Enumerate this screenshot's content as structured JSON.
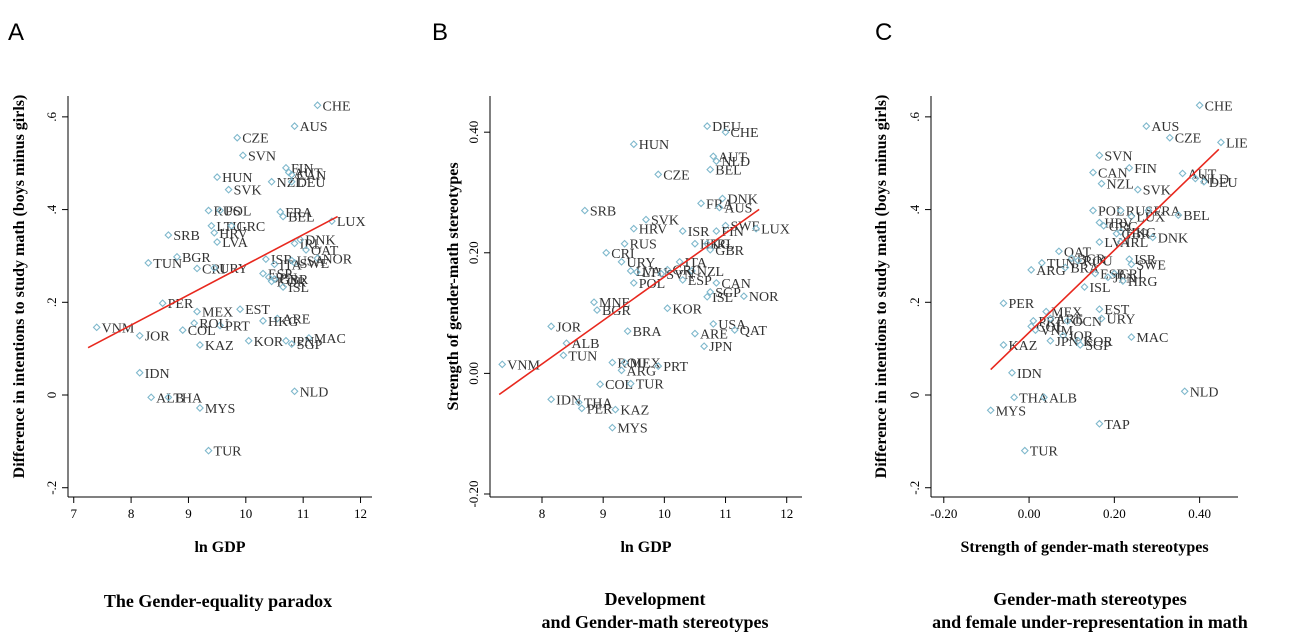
{
  "colors": {
    "marker": "#7fb8cc",
    "fit_line": "#e8281e",
    "axis": "#000000",
    "label": "#333333"
  },
  "chart_data": [
    {
      "type": "scatter",
      "panel": "A",
      "caption_lines": [
        "The Gender-equality paradox"
      ],
      "xlabel": "ln GDP",
      "ylabel": "Difference in intentions to study math (boys minus girls)",
      "xlim": [
        6.9,
        12.2
      ],
      "ylim": [
        -0.22,
        0.645
      ],
      "xticks": [
        7,
        8,
        9,
        10,
        11,
        12
      ],
      "xtick_labels": [
        "7",
        "8",
        "9",
        "10",
        "11",
        "12"
      ],
      "yticks": [
        -0.2,
        0,
        0.2,
        0.4,
        0.6
      ],
      "ytick_labels": [
        "-.2",
        "0",
        ".2",
        ".4",
        ".6"
      ],
      "fit_line": [
        [
          7.25,
          0.102
        ],
        [
          11.6,
          0.385
        ]
      ],
      "points": [
        {
          "label": "CHE",
          "x": 11.25,
          "y": 0.625
        },
        {
          "label": "AUS",
          "x": 10.85,
          "y": 0.58
        },
        {
          "label": "CZE",
          "x": 9.85,
          "y": 0.555
        },
        {
          "label": "SVN",
          "x": 9.95,
          "y": 0.517
        },
        {
          "label": "FIN",
          "x": 10.7,
          "y": 0.49
        },
        {
          "label": "AUT",
          "x": 10.75,
          "y": 0.48
        },
        {
          "label": "CAN",
          "x": 10.8,
          "y": 0.475
        },
        {
          "label": "NZL",
          "x": 10.45,
          "y": 0.46
        },
        {
          "label": "DEU",
          "x": 10.8,
          "y": 0.46
        },
        {
          "label": "HUN",
          "x": 9.5,
          "y": 0.47
        },
        {
          "label": "SVK",
          "x": 9.7,
          "y": 0.443
        },
        {
          "label": "FRA",
          "x": 10.6,
          "y": 0.395
        },
        {
          "label": "BEL",
          "x": 10.65,
          "y": 0.385
        },
        {
          "label": "LUX",
          "x": 11.5,
          "y": 0.375
        },
        {
          "label": "RUS",
          "x": 9.35,
          "y": 0.398
        },
        {
          "label": "POL",
          "x": 9.55,
          "y": 0.398
        },
        {
          "label": "LTU",
          "x": 9.4,
          "y": 0.365
        },
        {
          "label": "GRC",
          "x": 9.75,
          "y": 0.365
        },
        {
          "label": "HRV",
          "x": 9.45,
          "y": 0.35
        },
        {
          "label": "SRB",
          "x": 8.65,
          "y": 0.345
        },
        {
          "label": "LVA",
          "x": 9.5,
          "y": 0.33
        },
        {
          "label": "IRL",
          "x": 10.85,
          "y": 0.327
        },
        {
          "label": "DNK",
          "x": 10.95,
          "y": 0.335
        },
        {
          "label": "QAT",
          "x": 11.05,
          "y": 0.313
        },
        {
          "label": "NOR",
          "x": 11.25,
          "y": 0.295
        },
        {
          "label": "ISR",
          "x": 10.35,
          "y": 0.293
        },
        {
          "label": "USA",
          "x": 10.8,
          "y": 0.29
        },
        {
          "label": "SWE",
          "x": 10.85,
          "y": 0.285
        },
        {
          "label": "TUN",
          "x": 8.3,
          "y": 0.285
        },
        {
          "label": "BGR",
          "x": 8.8,
          "y": 0.298
        },
        {
          "label": "CRI",
          "x": 9.15,
          "y": 0.273
        },
        {
          "label": "URY",
          "x": 9.45,
          "y": 0.274
        },
        {
          "label": "ITA",
          "x": 10.5,
          "y": 0.282
        },
        {
          "label": "ESP",
          "x": 10.3,
          "y": 0.262
        },
        {
          "label": "JPN",
          "x": 10.4,
          "y": 0.254
        },
        {
          "label": "GBR",
          "x": 10.5,
          "y": 0.25
        },
        {
          "label": "KOR",
          "x": 10.45,
          "y": 0.245
        },
        {
          "label": "ISL",
          "x": 10.65,
          "y": 0.233
        },
        {
          "label": "PER",
          "x": 8.55,
          "y": 0.198
        },
        {
          "label": "MEX",
          "x": 9.15,
          "y": 0.18
        },
        {
          "label": "EST",
          "x": 9.9,
          "y": 0.185
        },
        {
          "label": "ARE",
          "x": 10.55,
          "y": 0.165
        },
        {
          "label": "HKG",
          "x": 10.3,
          "y": 0.16
        },
        {
          "label": "PRT",
          "x": 9.55,
          "y": 0.15
        },
        {
          "label": "ROU",
          "x": 9.1,
          "y": 0.155
        },
        {
          "label": "COL",
          "x": 8.9,
          "y": 0.14
        },
        {
          "label": "VNM",
          "x": 7.4,
          "y": 0.146
        },
        {
          "label": "JOR",
          "x": 8.15,
          "y": 0.128
        },
        {
          "label": "KAZ",
          "x": 9.2,
          "y": 0.108
        },
        {
          "label": "MAC",
          "x": 11.1,
          "y": 0.123
        },
        {
          "label": "JPN",
          "x": 10.7,
          "y": 0.117
        },
        {
          "label": "KOR",
          "x": 10.05,
          "y": 0.117
        },
        {
          "label": "SGP",
          "x": 10.8,
          "y": 0.11
        },
        {
          "label": "IDN",
          "x": 8.15,
          "y": 0.048
        },
        {
          "label": "NLD",
          "x": 10.85,
          "y": 0.008
        },
        {
          "label": "ALB",
          "x": 8.35,
          "y": -0.005
        },
        {
          "label": "THA",
          "x": 8.65,
          "y": -0.005
        },
        {
          "label": "MYS",
          "x": 9.2,
          "y": -0.028
        },
        {
          "label": "TUR",
          "x": 9.35,
          "y": -0.12
        }
      ]
    },
    {
      "type": "scatter",
      "panel": "B",
      "caption_lines": [
        "Development",
        "and Gender-math stereotypes"
      ],
      "xlabel": "ln GDP",
      "ylabel": "Strength of gender-math stereotypes",
      "xlim": [
        7.15,
        12.25
      ],
      "ylim": [
        -0.205,
        0.46
      ],
      "xticks": [
        8,
        9,
        10,
        11,
        12
      ],
      "xtick_labels": [
        "8",
        "9",
        "10",
        "11",
        "12"
      ],
      "yticks": [
        -0.2,
        0,
        0.2,
        0.4
      ],
      "ytick_labels": [
        "-0.20",
        "0.00",
        "0.20",
        "0.40"
      ],
      "fit_line": [
        [
          7.3,
          -0.035
        ],
        [
          11.55,
          0.272
        ]
      ],
      "points": [
        {
          "label": "DEU",
          "x": 10.7,
          "y": 0.41
        },
        {
          "label": "CHE",
          "x": 11.0,
          "y": 0.4
        },
        {
          "label": "HUN",
          "x": 9.5,
          "y": 0.38
        },
        {
          "label": "AUT",
          "x": 10.8,
          "y": 0.36
        },
        {
          "label": "NLD",
          "x": 10.85,
          "y": 0.352
        },
        {
          "label": "BEL",
          "x": 10.75,
          "y": 0.338
        },
        {
          "label": "CZE",
          "x": 9.9,
          "y": 0.33
        },
        {
          "label": "DNK",
          "x": 10.95,
          "y": 0.29
        },
        {
          "label": "FRA",
          "x": 10.6,
          "y": 0.282
        },
        {
          "label": "AUS",
          "x": 10.9,
          "y": 0.275
        },
        {
          "label": "SRB",
          "x": 8.7,
          "y": 0.27
        },
        {
          "label": "SVK",
          "x": 9.7,
          "y": 0.255
        },
        {
          "label": "SWE",
          "x": 11.0,
          "y": 0.245
        },
        {
          "label": "LUX",
          "x": 11.5,
          "y": 0.24
        },
        {
          "label": "FIN",
          "x": 10.85,
          "y": 0.236
        },
        {
          "label": "HRV",
          "x": 9.5,
          "y": 0.24
        },
        {
          "label": "ISR",
          "x": 10.3,
          "y": 0.236
        },
        {
          "label": "HKG",
          "x": 10.5,
          "y": 0.215
        },
        {
          "label": "IRL",
          "x": 10.7,
          "y": 0.215
        },
        {
          "label": "GBR",
          "x": 10.75,
          "y": 0.205
        },
        {
          "label": "RUS",
          "x": 9.35,
          "y": 0.215
        },
        {
          "label": "CRI",
          "x": 9.05,
          "y": 0.2
        },
        {
          "label": "URY",
          "x": 9.3,
          "y": 0.185
        },
        {
          "label": "ITA",
          "x": 10.25,
          "y": 0.185
        },
        {
          "label": "NZL",
          "x": 10.45,
          "y": 0.17
        },
        {
          "label": "GRC",
          "x": 10.05,
          "y": 0.172
        },
        {
          "label": "LVA",
          "x": 9.45,
          "y": 0.17
        },
        {
          "label": "LTU",
          "x": 9.55,
          "y": 0.168
        },
        {
          "label": "SVN",
          "x": 9.95,
          "y": 0.165
        },
        {
          "label": "POL",
          "x": 9.5,
          "y": 0.15
        },
        {
          "label": "ESP",
          "x": 10.3,
          "y": 0.155
        },
        {
          "label": "CAN",
          "x": 10.85,
          "y": 0.15
        },
        {
          "label": "SGP",
          "x": 10.75,
          "y": 0.135
        },
        {
          "label": "ISL",
          "x": 10.7,
          "y": 0.127
        },
        {
          "label": "NOR",
          "x": 11.3,
          "y": 0.128
        },
        {
          "label": "MNE",
          "x": 8.85,
          "y": 0.118
        },
        {
          "label": "BGR",
          "x": 8.9,
          "y": 0.105
        },
        {
          "label": "KOR",
          "x": 10.05,
          "y": 0.108
        },
        {
          "label": "USA",
          "x": 10.8,
          "y": 0.082
        },
        {
          "label": "QAT",
          "x": 11.15,
          "y": 0.072
        },
        {
          "label": "ARE",
          "x": 10.5,
          "y": 0.066
        },
        {
          "label": "BRA",
          "x": 9.4,
          "y": 0.07
        },
        {
          "label": "JOR",
          "x": 8.15,
          "y": 0.078
        },
        {
          "label": "ALB",
          "x": 8.4,
          "y": 0.05
        },
        {
          "label": "JPN",
          "x": 10.65,
          "y": 0.045
        },
        {
          "label": "TUN",
          "x": 8.35,
          "y": 0.03
        },
        {
          "label": "VNM",
          "x": 7.35,
          "y": 0.015
        },
        {
          "label": "ROU",
          "x": 9.15,
          "y": 0.018
        },
        {
          "label": "MEX",
          "x": 9.35,
          "y": 0.018
        },
        {
          "label": "PRT",
          "x": 9.9,
          "y": 0.012
        },
        {
          "label": "ARG",
          "x": 9.3,
          "y": 0.005
        },
        {
          "label": "COL",
          "x": 8.95,
          "y": -0.018
        },
        {
          "label": "TUR",
          "x": 9.45,
          "y": -0.017
        },
        {
          "label": "IDN",
          "x": 8.15,
          "y": -0.043
        },
        {
          "label": "THA",
          "x": 8.6,
          "y": -0.048
        },
        {
          "label": "PER",
          "x": 8.65,
          "y": -0.058
        },
        {
          "label": "KAZ",
          "x": 9.2,
          "y": -0.06
        },
        {
          "label": "MYS",
          "x": 9.15,
          "y": -0.09
        }
      ]
    },
    {
      "type": "scatter",
      "panel": "C",
      "caption_lines": [
        "Gender-math stereotypes",
        "and female under-representation in math"
      ],
      "xlabel": "Strength of gender-math stereotypes",
      "ylabel": "Difference in intentions to study math (boys minus girls)",
      "xlim": [
        -0.23,
        0.49
      ],
      "ylim": [
        -0.22,
        0.645
      ],
      "xticks": [
        -0.2,
        0,
        0.2,
        0.4
      ],
      "xtick_labels": [
        "-0.20",
        "0.00",
        "0.20",
        "0.40"
      ],
      "yticks": [
        -0.2,
        0,
        0.2,
        0.4,
        0.6
      ],
      "ytick_labels": [
        "-.2",
        "0",
        ".2",
        ".4",
        ".6"
      ],
      "fit_line": [
        [
          -0.09,
          0.055
        ],
        [
          0.445,
          0.53
        ]
      ],
      "points": [
        {
          "label": "CHE",
          "x": 0.4,
          "y": 0.625
        },
        {
          "label": "AUS",
          "x": 0.275,
          "y": 0.58
        },
        {
          "label": "CZE",
          "x": 0.33,
          "y": 0.555
        },
        {
          "label": "LIE",
          "x": 0.45,
          "y": 0.545
        },
        {
          "label": "SVN",
          "x": 0.165,
          "y": 0.517
        },
        {
          "label": "FIN",
          "x": 0.235,
          "y": 0.49
        },
        {
          "label": "CAN",
          "x": 0.15,
          "y": 0.48
        },
        {
          "label": "AUT",
          "x": 0.36,
          "y": 0.478
        },
        {
          "label": "NLD",
          "x": 0.39,
          "y": 0.467
        },
        {
          "label": "DEU",
          "x": 0.41,
          "y": 0.46
        },
        {
          "label": "NZL",
          "x": 0.17,
          "y": 0.456
        },
        {
          "label": "SVK",
          "x": 0.255,
          "y": 0.443
        },
        {
          "label": "POL",
          "x": 0.15,
          "y": 0.398
        },
        {
          "label": "RUS",
          "x": 0.215,
          "y": 0.398
        },
        {
          "label": "FRA",
          "x": 0.28,
          "y": 0.398
        },
        {
          "label": "BEL",
          "x": 0.35,
          "y": 0.388
        },
        {
          "label": "LUX",
          "x": 0.24,
          "y": 0.385
        },
        {
          "label": "HRV",
          "x": 0.165,
          "y": 0.372
        },
        {
          "label": "GRC",
          "x": 0.175,
          "y": 0.365
        },
        {
          "label": "HKG",
          "x": 0.215,
          "y": 0.352
        },
        {
          "label": "GBR",
          "x": 0.205,
          "y": 0.348
        },
        {
          "label": "DNK",
          "x": 0.29,
          "y": 0.34
        },
        {
          "label": "LVA",
          "x": 0.165,
          "y": 0.33
        },
        {
          "label": "IRL",
          "x": 0.215,
          "y": 0.33
        },
        {
          "label": "QAT",
          "x": 0.07,
          "y": 0.31
        },
        {
          "label": "TUN",
          "x": 0.03,
          "y": 0.285
        },
        {
          "label": "BGR",
          "x": 0.1,
          "y": 0.295
        },
        {
          "label": "ROU",
          "x": 0.115,
          "y": 0.29
        },
        {
          "label": "ISR",
          "x": 0.235,
          "y": 0.293
        },
        {
          "label": "SWE",
          "x": 0.24,
          "y": 0.282
        },
        {
          "label": "BRA",
          "x": 0.085,
          "y": 0.275
        },
        {
          "label": "ARG",
          "x": 0.005,
          "y": 0.27
        },
        {
          "label": "ESP",
          "x": 0.155,
          "y": 0.262
        },
        {
          "label": "CRI",
          "x": 0.2,
          "y": 0.262
        },
        {
          "label": "JPN",
          "x": 0.185,
          "y": 0.254
        },
        {
          "label": "HRG",
          "x": 0.22,
          "y": 0.246
        },
        {
          "label": "ISL",
          "x": 0.13,
          "y": 0.233
        },
        {
          "label": "PER",
          "x": -0.06,
          "y": 0.198
        },
        {
          "label": "MEX",
          "x": 0.04,
          "y": 0.18
        },
        {
          "label": "EST",
          "x": 0.165,
          "y": 0.185
        },
        {
          "label": "PRT",
          "x": 0.01,
          "y": 0.16
        },
        {
          "label": "ARE",
          "x": 0.05,
          "y": 0.165
        },
        {
          "label": "OCN",
          "x": 0.09,
          "y": 0.16
        },
        {
          "label": "URY",
          "x": 0.17,
          "y": 0.165
        },
        {
          "label": "COL",
          "x": 0.005,
          "y": 0.148
        },
        {
          "label": "VNM",
          "x": 0.015,
          "y": 0.14
        },
        {
          "label": "MAC",
          "x": 0.24,
          "y": 0.125
        },
        {
          "label": "JOR",
          "x": 0.08,
          "y": 0.128
        },
        {
          "label": "JPN",
          "x": 0.05,
          "y": 0.117
        },
        {
          "label": "KOR",
          "x": 0.115,
          "y": 0.117
        },
        {
          "label": "SGP",
          "x": 0.12,
          "y": 0.108
        },
        {
          "label": "KAZ",
          "x": -0.06,
          "y": 0.108
        },
        {
          "label": "IDN",
          "x": -0.04,
          "y": 0.048
        },
        {
          "label": "NLD",
          "x": 0.365,
          "y": 0.008
        },
        {
          "label": "THA",
          "x": -0.035,
          "y": -0.005
        },
        {
          "label": "ALB",
          "x": 0.035,
          "y": -0.005
        },
        {
          "label": "MYS",
          "x": -0.09,
          "y": -0.033
        },
        {
          "label": "TAP",
          "x": 0.165,
          "y": -0.062
        },
        {
          "label": "TUR",
          "x": -0.01,
          "y": -0.12
        }
      ]
    }
  ]
}
